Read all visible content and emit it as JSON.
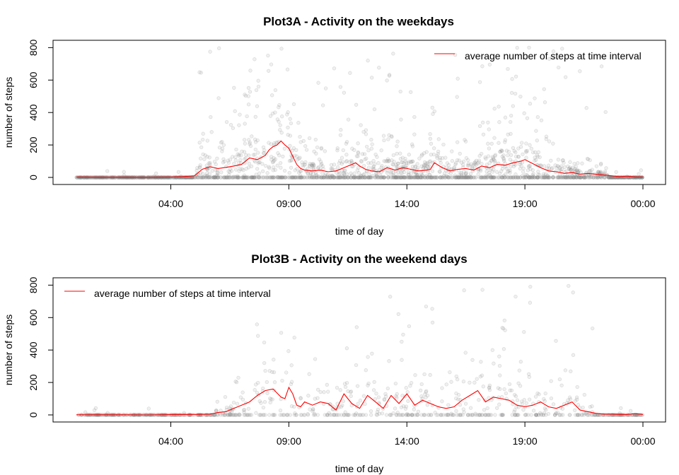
{
  "chart_data": [
    {
      "type": "scatter",
      "title": "Plot3A - Activity on the weekdays",
      "xlabel": "time of day",
      "ylabel": "number of steps",
      "xlim": [
        0,
        1440
      ],
      "ylim": [
        0,
        806
      ],
      "x_ticks": [
        {
          "value": 240,
          "label": "04:00"
        },
        {
          "value": 540,
          "label": "09:00"
        },
        {
          "value": 840,
          "label": "14:00"
        },
        {
          "value": 1140,
          "label": "19:00"
        },
        {
          "value": 1440,
          "label": "00:00"
        }
      ],
      "y_ticks": [
        0,
        200,
        400,
        600,
        800
      ],
      "legend": {
        "position": "top-right",
        "entries": [
          {
            "label": "average number of steps at time interval",
            "color": "#ff0000"
          }
        ]
      },
      "colors": {
        "points": "#888888",
        "line": "#ff0000"
      },
      "series": [
        {
          "name": "average number of steps at time interval",
          "kind": "line",
          "x": [
            0,
            60,
            120,
            180,
            240,
            270,
            300,
            320,
            340,
            360,
            380,
            400,
            420,
            440,
            460,
            480,
            490,
            500,
            510,
            520,
            530,
            540,
            550,
            560,
            570,
            580,
            600,
            620,
            640,
            660,
            680,
            700,
            710,
            720,
            735,
            750,
            770,
            790,
            810,
            830,
            850,
            870,
            890,
            900,
            910,
            930,
            950,
            970,
            990,
            1010,
            1030,
            1050,
            1070,
            1090,
            1110,
            1130,
            1140,
            1160,
            1180,
            1200,
            1220,
            1240,
            1260,
            1280,
            1300,
            1320,
            1340,
            1360,
            1380,
            1400,
            1420,
            1440
          ],
          "y": [
            2,
            1,
            1,
            0,
            2,
            5,
            10,
            50,
            66,
            55,
            62,
            70,
            80,
            120,
            110,
            135,
            170,
            190,
            200,
            225,
            200,
            180,
            130,
            80,
            55,
            45,
            40,
            45,
            35,
            40,
            60,
            80,
            90,
            70,
            50,
            40,
            35,
            60,
            45,
            60,
            50,
            40,
            45,
            50,
            90,
            60,
            40,
            50,
            55,
            45,
            70,
            60,
            80,
            75,
            90,
            100,
            110,
            85,
            60,
            40,
            35,
            25,
            30,
            20,
            25,
            20,
            15,
            10,
            5,
            8,
            3,
            2
          ]
        },
        {
          "name": "",
          "kind": "scatter",
          "count": 2300,
          "description": "per-interval raw step counts (grey, semi-transparent)"
        }
      ]
    },
    {
      "type": "scatter",
      "title": "Plot3B - Activity on the weekend days",
      "xlabel": "time of day",
      "ylabel": "number of steps",
      "xlim": [
        0,
        1440
      ],
      "ylim": [
        0,
        806
      ],
      "x_ticks": [
        {
          "value": 240,
          "label": "04:00"
        },
        {
          "value": 540,
          "label": "09:00"
        },
        {
          "value": 840,
          "label": "14:00"
        },
        {
          "value": 1140,
          "label": "19:00"
        },
        {
          "value": 1440,
          "label": "00:00"
        }
      ],
      "y_ticks": [
        0,
        200,
        400,
        600,
        800
      ],
      "legend": {
        "position": "top-left",
        "entries": [
          {
            "label": "average number of steps at time interval",
            "color": "#ff0000"
          }
        ]
      },
      "colors": {
        "points": "#888888",
        "line": "#ff0000"
      },
      "series": [
        {
          "name": "average number of steps at time interval",
          "kind": "line",
          "x": [
            0,
            60,
            120,
            180,
            240,
            300,
            340,
            360,
            380,
            400,
            420,
            440,
            460,
            480,
            500,
            520,
            530,
            540,
            550,
            560,
            570,
            580,
            600,
            620,
            640,
            660,
            680,
            700,
            720,
            740,
            760,
            780,
            800,
            820,
            840,
            860,
            880,
            900,
            920,
            940,
            960,
            980,
            1000,
            1020,
            1040,
            1060,
            1080,
            1100,
            1120,
            1140,
            1160,
            1180,
            1200,
            1220,
            1240,
            1260,
            1280,
            1300,
            1320,
            1340,
            1360,
            1380,
            1400,
            1420,
            1440
          ],
          "y": [
            1,
            1,
            1,
            0,
            2,
            3,
            5,
            15,
            20,
            40,
            60,
            80,
            120,
            150,
            160,
            110,
            100,
            170,
            130,
            60,
            50,
            80,
            60,
            80,
            70,
            30,
            130,
            70,
            40,
            120,
            80,
            40,
            120,
            70,
            130,
            60,
            90,
            70,
            50,
            40,
            50,
            90,
            120,
            150,
            80,
            110,
            100,
            90,
            60,
            50,
            60,
            80,
            50,
            40,
            60,
            80,
            30,
            20,
            10,
            5,
            5,
            3,
            2,
            8,
            2
          ]
        },
        {
          "name": "",
          "kind": "scatter",
          "count": 900,
          "description": "per-interval raw step counts (grey, semi-transparent)"
        }
      ]
    }
  ]
}
